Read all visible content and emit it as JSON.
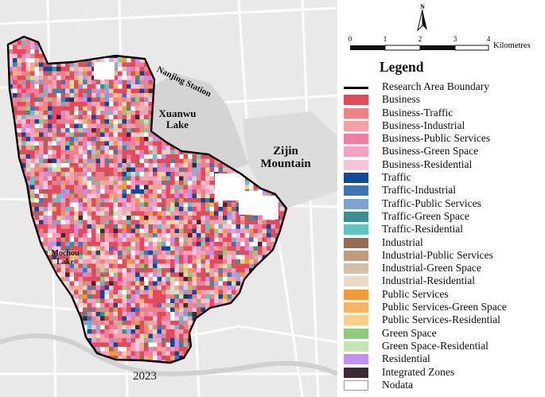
{
  "places": {
    "nanjing_station": "Nanjing Station",
    "xuanwu_lake": "Xuanwu\nLake",
    "zijin_mountain": "Zijin\nMountain",
    "mochou_lake": "Mochou\nLake"
  },
  "year": "2023",
  "north_arrow": {
    "label": "N",
    "icon": "north-arrow-icon"
  },
  "scale_bar": {
    "ticks": [
      "0",
      "1",
      "2",
      "3",
      "4"
    ],
    "unit": "Kilometres"
  },
  "legend": {
    "title": "Legend",
    "items": [
      {
        "label": "Research Area Boundary",
        "type": "line",
        "color": "#000000"
      },
      {
        "label": "Business",
        "color": "#e8485b"
      },
      {
        "label": "Business-Traffic",
        "color": "#f07f86"
      },
      {
        "label": "Business-Industrial",
        "color": "#f5a2a6"
      },
      {
        "label": "Business-Public Services",
        "color": "#ef7fa2"
      },
      {
        "label": "Business-Green Space",
        "color": "#f3a0c2"
      },
      {
        "label": "Business-Residential",
        "color": "#f7c4da"
      },
      {
        "label": "Traffic",
        "color": "#0d4a97"
      },
      {
        "label": "Traffic-Industrial",
        "color": "#3c74bd"
      },
      {
        "label": "Traffic-Public Services",
        "color": "#7fa2d3"
      },
      {
        "label": "Traffic-Green Space",
        "color": "#3b8e91"
      },
      {
        "label": "Traffic-Residential",
        "color": "#5ec6c1"
      },
      {
        "label": "Industrial",
        "color": "#9a6b4e"
      },
      {
        "label": "Industrial-Public Services",
        "color": "#c39a7b"
      },
      {
        "label": "Industrial-Green Space",
        "color": "#d8bea3"
      },
      {
        "label": "Industrial-Residential",
        "color": "#ecd9c6"
      },
      {
        "label": "Public Services",
        "color": "#f39a3b"
      },
      {
        "label": "Public Services-Green Space",
        "color": "#f5b565"
      },
      {
        "label": "Public Services-Residential",
        "color": "#f8d08c"
      },
      {
        "label": "Green Space",
        "color": "#8fcb7d"
      },
      {
        "label": "Green Space-Residential",
        "color": "#c5e5b2"
      },
      {
        "label": "Residential",
        "color": "#c290f0"
      },
      {
        "label": "Integrated Zones",
        "color": "#3b2a31"
      },
      {
        "label": "Nodata",
        "type": "nodata",
        "color": "#ffffff"
      }
    ]
  }
}
